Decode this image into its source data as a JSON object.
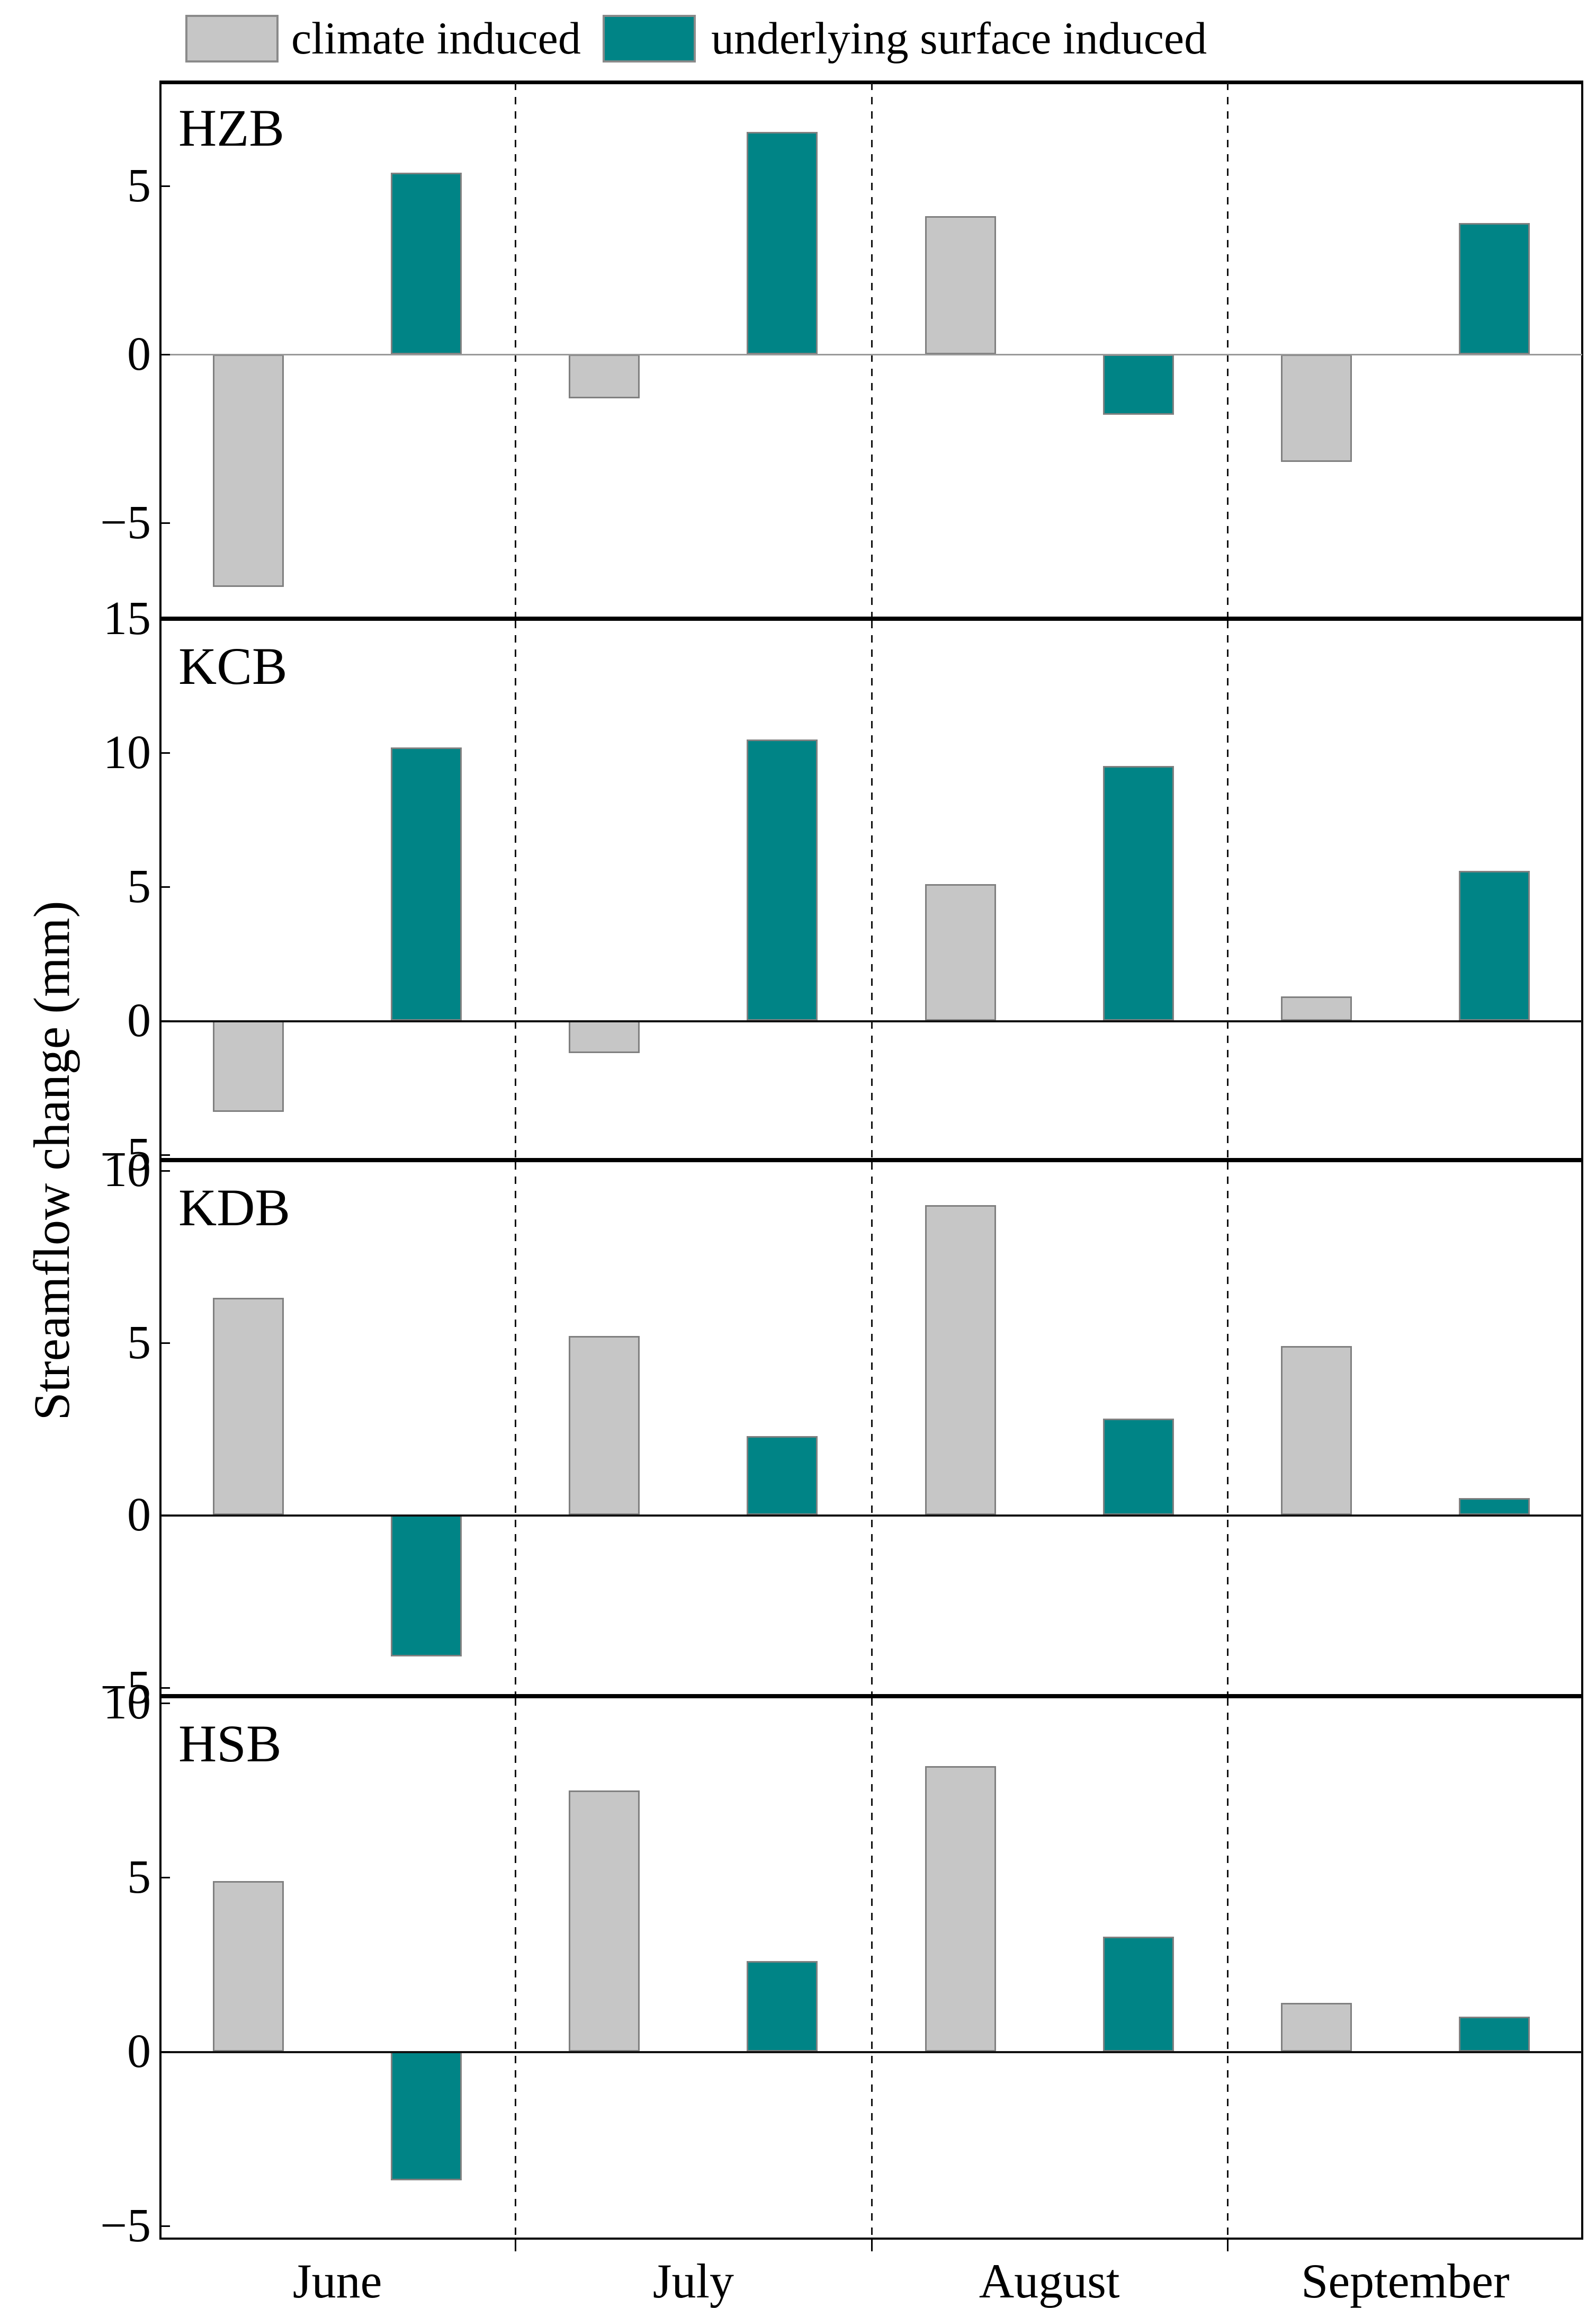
{
  "figure": {
    "y_axis_title": "Streamflow change (mm)",
    "legend": [
      {
        "key": "climate",
        "label": "climate induced",
        "color": "#c6c6c6"
      },
      {
        "key": "surface",
        "label": "underlying surface induced",
        "color": "#008486"
      }
    ],
    "colors": {
      "climate_fill": "#c6c6c6",
      "surface_fill": "#008486",
      "bar_border": "#808080",
      "axis": "#000000",
      "zero_line_hzb": "#999999",
      "zero_line_dark": "#111111",
      "separator": "#111111"
    }
  },
  "chart_data": {
    "type": "bar",
    "categories": [
      "June",
      "July",
      "August",
      "September"
    ],
    "ylabel": "Streamflow change (mm)",
    "legend_position": "top",
    "series_names": [
      "climate induced",
      "underlying surface induced"
    ],
    "panels": [
      {
        "label": "HZB",
        "ylim": [
          -7.85,
          8.13
        ],
        "yticks": [
          5,
          0,
          -5
        ],
        "series": [
          {
            "name": "climate induced",
            "values": [
              -6.9,
              -1.3,
              4.1,
              -3.2
            ]
          },
          {
            "name": "underlying surface induced",
            "values": [
              5.4,
              6.6,
              -1.8,
              3.9
            ]
          }
        ]
      },
      {
        "label": "KCB",
        "ylim": [
          -5.2,
          15
        ],
        "yticks": [
          15,
          10,
          5,
          0,
          -5
        ],
        "series": [
          {
            "name": "climate induced",
            "values": [
              -3.4,
              -1.2,
              5.1,
              0.9
            ]
          },
          {
            "name": "underlying surface induced",
            "values": [
              10.2,
              10.5,
              9.5,
              5.6
            ]
          }
        ]
      },
      {
        "label": "KDB",
        "ylim": [
          -5.25,
          10.3
        ],
        "yticks": [
          10,
          5,
          0,
          -5
        ],
        "series": [
          {
            "name": "climate induced",
            "values": [
              6.3,
              5.2,
              9.0,
              4.9
            ]
          },
          {
            "name": "underlying surface induced",
            "values": [
              -4.1,
              2.3,
              2.8,
              0.5
            ]
          }
        ]
      },
      {
        "label": "HSB",
        "ylim": [
          -5.4,
          10.2
        ],
        "yticks": [
          10,
          5,
          0,
          -5
        ],
        "series": [
          {
            "name": "climate induced",
            "values": [
              4.9,
              7.5,
              8.2,
              1.4
            ]
          },
          {
            "name": "underlying surface induced",
            "values": [
              -3.7,
              2.6,
              3.3,
              1.0
            ]
          }
        ]
      }
    ]
  }
}
